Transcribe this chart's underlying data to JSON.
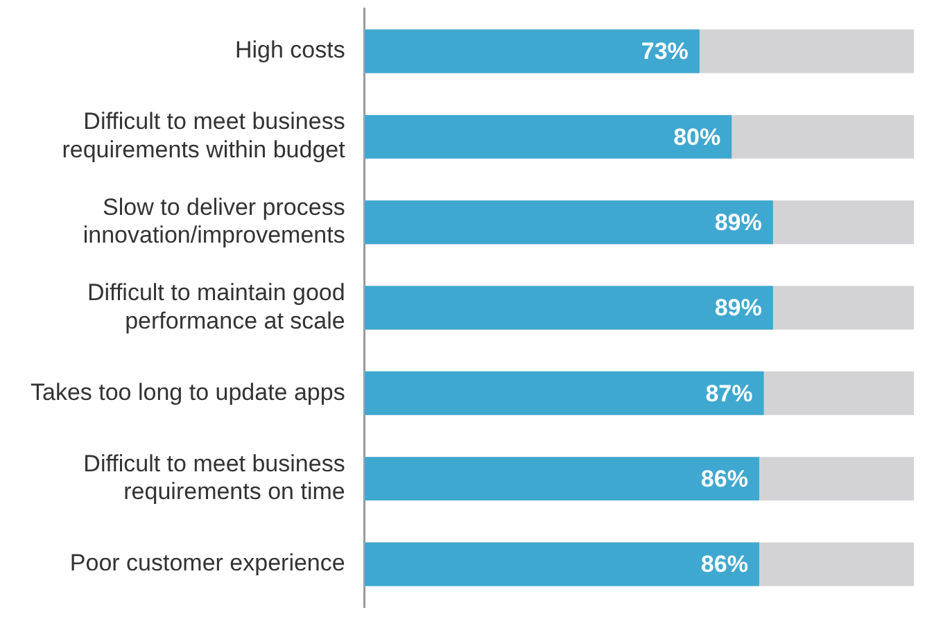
{
  "chart_data": {
    "type": "bar",
    "orientation": "horizontal",
    "categories": [
      "High costs",
      "Difficult to meet business\nrequirements within budget",
      "Slow to deliver process\ninnovation/improvements",
      "Difficult to maintain good\nperformance at scale",
      "Takes too long to update apps",
      "Difficult to meet business\nrequirements on time",
      "Poor customer experience"
    ],
    "values": [
      73,
      80,
      89,
      89,
      87,
      86,
      86
    ],
    "value_labels": [
      "73%",
      "80%",
      "89%",
      "89%",
      "87%",
      "86%",
      "86%"
    ],
    "color": "#3fa8d0",
    "tick_labels": "y"
  }
}
